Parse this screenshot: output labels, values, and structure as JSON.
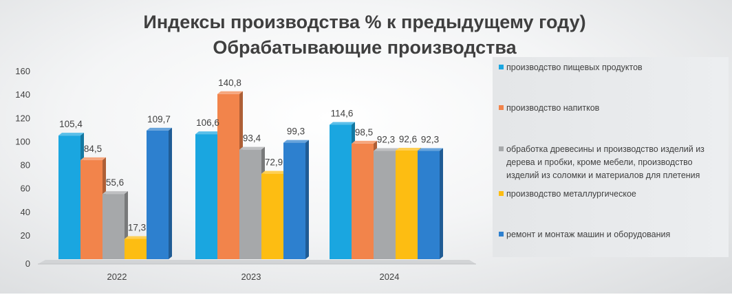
{
  "chart_data": {
    "type": "bar",
    "title": "Индексы производства % к предыдущему году)",
    "subtitle": "Обрабатывающие производства",
    "categories": [
      "2022",
      "2023",
      "2024"
    ],
    "ylim": [
      0,
      160
    ],
    "yticks": [
      0,
      20,
      40,
      60,
      80,
      100,
      120,
      140,
      160
    ],
    "xlabel": "",
    "ylabel": "",
    "legend_position": "right",
    "series": [
      {
        "name": "производство пищевых продуктов",
        "legend_lines": [
          "производство пищевых продуктов"
        ],
        "color": "#1aa6e0",
        "values": [
          105.4,
          106.6,
          114.6
        ],
        "labels": [
          "105,4",
          "106,6",
          "114,6"
        ]
      },
      {
        "name": "производство напитков",
        "legend_lines": [
          "производство напитков"
        ],
        "color": "#f2844b",
        "values": [
          84.5,
          140.8,
          98.5
        ],
        "labels": [
          "84,5",
          "140,8",
          "98,5"
        ]
      },
      {
        "name": "обработка древесины и производство изделий из дерева и пробки, кроме мебели, производство изделий из соломки и материалов для плетения",
        "legend_lines": [
          "обработка древесины и производство изделий из",
          "дерева и пробки, кроме мебели, производство",
          "изделий из соломки и материалов для плетения"
        ],
        "color": "#a6a8aa",
        "values": [
          55.6,
          93.4,
          92.3
        ],
        "labels": [
          "55,6",
          "93,4",
          "92,3"
        ]
      },
      {
        "name": "производство металлургическое",
        "legend_lines": [
          "производство металлургическое"
        ],
        "color": "#fdbd12",
        "values": [
          17.3,
          72.9,
          92.6
        ],
        "labels": [
          "17,3",
          "72,9",
          "92,6"
        ]
      },
      {
        "name": "ремонт и монтаж машин и оборудования",
        "legend_lines": [
          "ремонт и монтаж машин и оборудования"
        ],
        "color": "#2d80cf",
        "values": [
          109.7,
          99.3,
          92.3
        ],
        "labels": [
          "109,7",
          "99,3",
          "92,3"
        ]
      }
    ]
  }
}
